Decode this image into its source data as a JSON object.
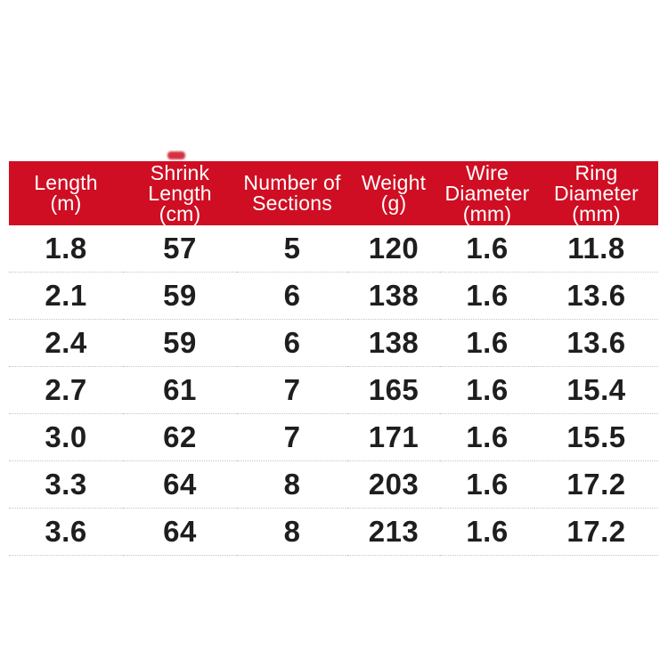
{
  "chart_data": {
    "type": "table",
    "title": "",
    "columns": [
      "Length (m)",
      "Shrink Length (cm)",
      "Number of Sections",
      "Weight (g)",
      "Wire Diameter (mm)",
      "Ring Diameter (mm)"
    ],
    "rows": [
      [
        "1.8",
        "57",
        "5",
        "120",
        "1.6",
        "11.8"
      ],
      [
        "2.1",
        "59",
        "6",
        "138",
        "1.6",
        "13.6"
      ],
      [
        "2.4",
        "59",
        "6",
        "138",
        "1.6",
        "13.6"
      ],
      [
        "2.7",
        "61",
        "7",
        "165",
        "1.6",
        "15.4"
      ],
      [
        "3.0",
        "62",
        "7",
        "171",
        "1.6",
        "15.5"
      ],
      [
        "3.3",
        "64",
        "8",
        "203",
        "1.6",
        "17.2"
      ],
      [
        "3.6",
        "64",
        "8",
        "213",
        "1.6",
        "17.2"
      ]
    ]
  },
  "table": {
    "colors": {
      "header_bg": "#CF0E23",
      "header_text": "#ffffff",
      "body_text": "#1e1e1e",
      "divider": "#c5c5c5",
      "page_bg": "#ffffff"
    },
    "columns": [
      {
        "id": "length",
        "label": "Length\n(m)"
      },
      {
        "id": "shrink",
        "label": "Shrink\nLength\n(cm)"
      },
      {
        "id": "sections",
        "label": "Number of\nSections"
      },
      {
        "id": "weight",
        "label": "Weight\n(g)"
      },
      {
        "id": "wire",
        "label": "Wire\nDiameter\n(mm)"
      },
      {
        "id": "ring",
        "label": "Ring\nDiameter\n(mm)"
      }
    ],
    "rows": [
      [
        "1.8",
        "57",
        "5",
        "120",
        "1.6",
        "11.8"
      ],
      [
        "2.1",
        "59",
        "6",
        "138",
        "1.6",
        "13.6"
      ],
      [
        "2.4",
        "59",
        "6",
        "138",
        "1.6",
        "13.6"
      ],
      [
        "2.7",
        "61",
        "7",
        "165",
        "1.6",
        "15.4"
      ],
      [
        "3.0",
        "62",
        "7",
        "171",
        "1.6",
        "15.5"
      ],
      [
        "3.3",
        "64",
        "8",
        "203",
        "1.6",
        "17.2"
      ],
      [
        "3.6",
        "64",
        "8",
        "213",
        "1.6",
        "17.2"
      ]
    ]
  }
}
